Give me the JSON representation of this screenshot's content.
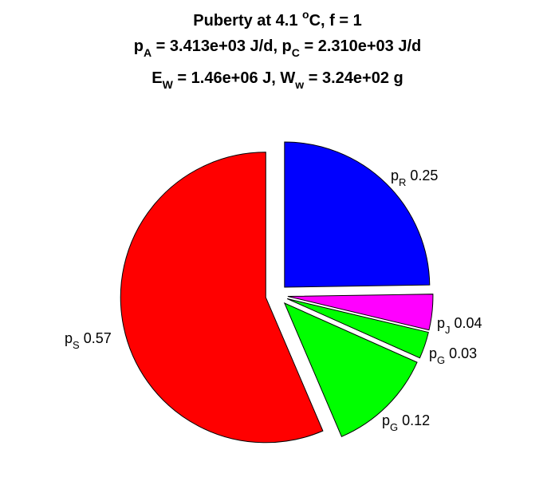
{
  "chart_data": {
    "type": "pie",
    "title": [
      {
        "parts": [
          {
            "t": "Puberty at 4.1 "
          },
          {
            "t": "o",
            "sup": true
          },
          {
            "t": "C, f = 1"
          }
        ]
      },
      {
        "parts": [
          {
            "t": "p"
          },
          {
            "t": "A",
            "sub": true
          },
          {
            "t": " = 3.413e+03 J/d,  p"
          },
          {
            "t": "C",
            "sub": true
          },
          {
            "t": " = 2.310e+03 J/d"
          }
        ]
      },
      {
        "parts": [
          {
            "t": "E"
          },
          {
            "t": "W",
            "sub": true
          },
          {
            "t": " = 1.46e+06 J, W"
          },
          {
            "t": "w",
            "sub": true
          },
          {
            "t": " = 3.24e+02 g"
          }
        ]
      }
    ],
    "slices": [
      {
        "id": "pR",
        "symbol": "p",
        "sub": "R",
        "value": 0.25,
        "value_label": "0.25",
        "color": "#0000ff",
        "exploded": true
      },
      {
        "id": "pJ",
        "symbol": "p",
        "sub": "J",
        "value": 0.04,
        "value_label": "0.04",
        "color": "#ff00ff",
        "exploded": true
      },
      {
        "id": "pG-small",
        "symbol": "p",
        "sub": "G",
        "value": 0.03,
        "value_label": "0.03",
        "color": "#00ff00",
        "exploded": true
      },
      {
        "id": "pG",
        "symbol": "p",
        "sub": "G",
        "value": 0.12,
        "value_label": "0.12",
        "color": "#00ff00",
        "exploded": true
      },
      {
        "id": "pS",
        "symbol": "p",
        "sub": "S",
        "value": 0.57,
        "value_label": "0.57",
        "color": "#ff0000",
        "exploded": true
      }
    ]
  }
}
